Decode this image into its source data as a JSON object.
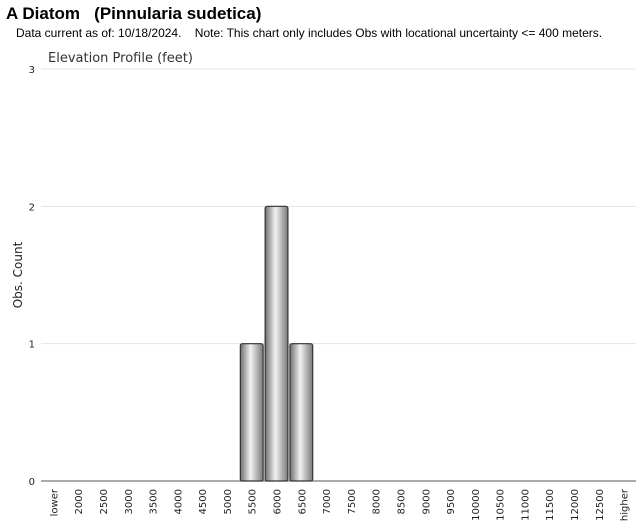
{
  "header": {
    "title": "A Diatom   (Pinnularia sudetica)",
    "note": "Data current as of: 10/18/2024.    Note: This chart only includes Obs with locational uncertainty <= 400 meters."
  },
  "colors": {
    "bar_fill": "#b9b9b9",
    "bar_stroke": "#333333",
    "grid": "#e3e3e3"
  },
  "chart_data": {
    "type": "bar",
    "title": "Elevation Profile (feet)",
    "xlabel": "",
    "ylabel": "Obs. Count",
    "ylim": [
      0,
      3
    ],
    "yticks": [
      0,
      1,
      2,
      3
    ],
    "grid": true,
    "legend": "none",
    "categories": [
      "lower",
      "2000",
      "2500",
      "3000",
      "3500",
      "4000",
      "4500",
      "5000",
      "5500",
      "6000",
      "6500",
      "7000",
      "7500",
      "8000",
      "8500",
      "9000",
      "9500",
      "10000",
      "10500",
      "11000",
      "11500",
      "12000",
      "12500",
      "higher"
    ],
    "values": [
      0,
      0,
      0,
      0,
      0,
      0,
      0,
      0,
      1,
      2,
      1,
      0,
      0,
      0,
      0,
      0,
      0,
      0,
      0,
      0,
      0,
      0,
      0,
      0
    ]
  }
}
